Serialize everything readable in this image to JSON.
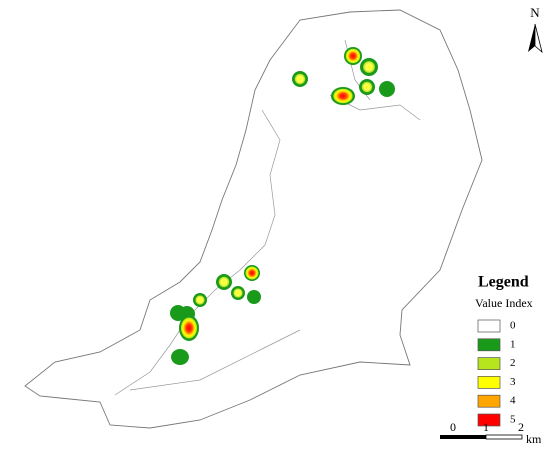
{
  "north": "N",
  "legend": {
    "title": "Legend",
    "subtitle": "Value Index",
    "items": [
      {
        "label": "0",
        "color": "#ffffff"
      },
      {
        "label": "1",
        "color": "#1a9a1a"
      },
      {
        "label": "2",
        "color": "#b6e51e"
      },
      {
        "label": "3",
        "color": "#ffff00"
      },
      {
        "label": "4",
        "color": "#ffa500"
      },
      {
        "label": "5",
        "color": "#ff0000"
      }
    ]
  },
  "scale_bar": {
    "labels": [
      "0",
      "1",
      "2"
    ],
    "unit": "km"
  }
}
